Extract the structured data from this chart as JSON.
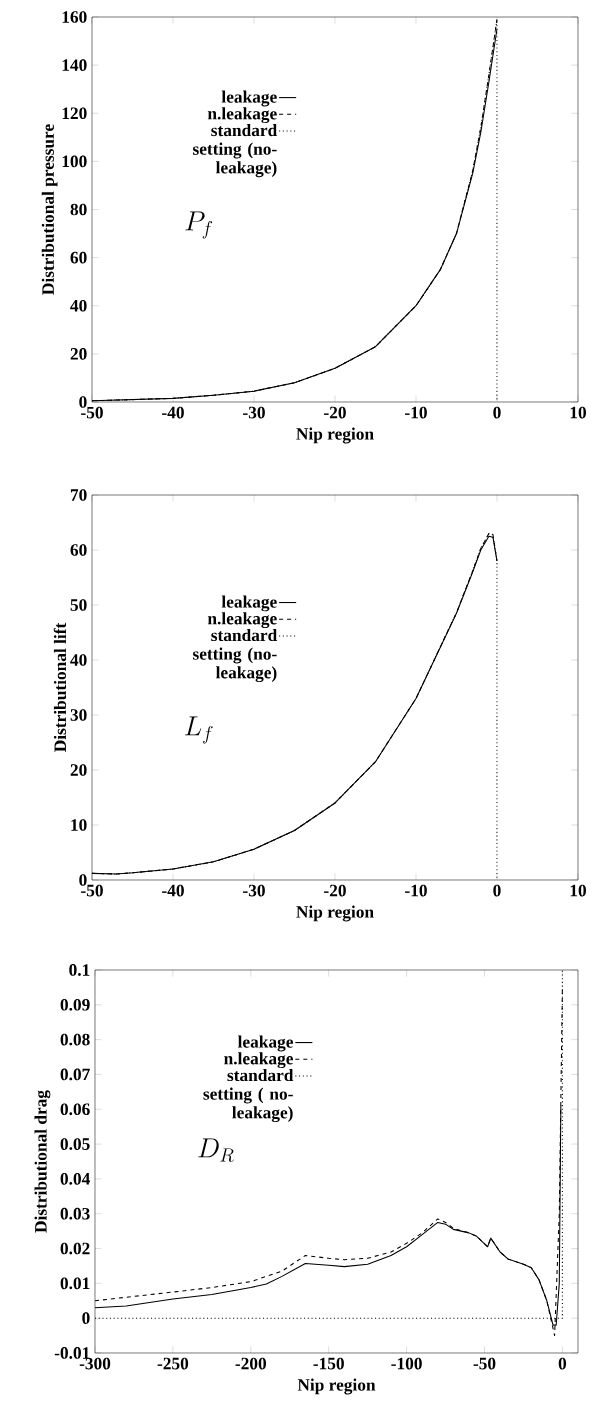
{
  "chart_data": [
    {
      "type": "line",
      "xlabel": "Nip region",
      "ylabel": "Distributional pressure",
      "xlim": [
        -50,
        10
      ],
      "ylim": [
        0,
        160
      ],
      "xticks": [
        -50,
        -40,
        -30,
        -20,
        -10,
        0,
        10
      ],
      "yticks": [
        0,
        20,
        40,
        60,
        80,
        100,
        120,
        140,
        160
      ],
      "legend": "top left",
      "annotations": [
        "P_f"
      ],
      "series": [
        {
          "name": "leakage",
          "color": "#000000",
          "line_style": "solid",
          "x": [
            -50,
            -45,
            -40,
            -35,
            -30,
            -25,
            -20,
            -15,
            -10,
            -7,
            -5,
            -3,
            -2,
            -1,
            0
          ],
          "values": [
            0.5,
            1,
            1.5,
            2.8,
            4.5,
            8,
            14,
            23,
            40,
            55,
            70,
            95,
            112,
            133,
            155
          ]
        },
        {
          "name": "n.leakage",
          "color": "#000000",
          "line_style": "dashed",
          "x": [
            -50,
            -45,
            -40,
            -35,
            -30,
            -25,
            -20,
            -15,
            -10,
            -7,
            -5,
            -3,
            -2,
            -1,
            0
          ],
          "values": [
            0.5,
            1,
            1.5,
            2.8,
            4.5,
            8,
            14,
            23,
            40,
            55,
            70,
            96,
            114,
            136,
            159
          ]
        },
        {
          "name": "standard setting (no-leakage)",
          "color": "#000000",
          "line_style": "dotted",
          "x": [
            -50,
            -45,
            -40,
            -35,
            -30,
            -25,
            -20,
            -15,
            -10,
            -7,
            -5,
            -3,
            -2,
            -1,
            0,
            0
          ],
          "values": [
            0.5,
            1,
            1.5,
            2.8,
            4.5,
            8,
            14,
            23,
            40,
            55,
            70,
            96,
            114,
            136,
            159,
            0
          ]
        }
      ]
    },
    {
      "type": "line",
      "xlabel": "Nip region",
      "ylabel": "Distributional lift",
      "xlim": [
        -50,
        10
      ],
      "ylim": [
        0,
        70
      ],
      "xticks": [
        -50,
        -40,
        -30,
        -20,
        -10,
        0,
        10
      ],
      "yticks": [
        0,
        10,
        20,
        30,
        40,
        50,
        60,
        70
      ],
      "legend": "top left",
      "annotations": [
        "L_f"
      ],
      "series": [
        {
          "name": "leakage",
          "color": "#000000",
          "line_style": "solid",
          "x": [
            -50,
            -47,
            -45,
            -40,
            -35,
            -30,
            -25,
            -20,
            -15,
            -10,
            -5,
            -3,
            -2,
            -1,
            -0.5,
            0
          ],
          "values": [
            1.2,
            1.1,
            1.3,
            2,
            3.3,
            5.6,
            9,
            14,
            21.5,
            33,
            48.5,
            56,
            60,
            62.5,
            62.3,
            58
          ]
        },
        {
          "name": "n.leakage",
          "color": "#000000",
          "line_style": "dashed",
          "x": [
            -50,
            -47,
            -45,
            -40,
            -35,
            -30,
            -25,
            -20,
            -15,
            -10,
            -5,
            -3,
            -2,
            -1,
            -0.5,
            0
          ],
          "values": [
            1.2,
            1.1,
            1.3,
            2,
            3.3,
            5.6,
            9,
            14,
            21.5,
            33,
            48.6,
            56.2,
            60.3,
            63,
            62.8,
            58
          ]
        },
        {
          "name": "standard setting (no-leakage)",
          "color": "#000000",
          "line_style": "dotted",
          "x": [
            -50,
            -47,
            -45,
            -40,
            -35,
            -30,
            -25,
            -20,
            -15,
            -10,
            -5,
            -3,
            -2,
            -1,
            -0.5,
            0,
            0
          ],
          "values": [
            1.2,
            1.1,
            1.3,
            2,
            3.3,
            5.6,
            9,
            14,
            21.5,
            33,
            48.6,
            56.2,
            60.3,
            63,
            62.8,
            58,
            0
          ]
        }
      ]
    },
    {
      "type": "line",
      "xlabel": "Nip region",
      "ylabel": "Distributional drag",
      "xlim": [
        -300,
        10
      ],
      "ylim": [
        -0.01,
        0.1
      ],
      "xticks": [
        -300,
        -250,
        -200,
        -150,
        -100,
        -50,
        0
      ],
      "yticks": [
        -0.01,
        0,
        0.01,
        0.02,
        0.03,
        0.04,
        0.05,
        0.06,
        0.07,
        0.08,
        0.09,
        0.1
      ],
      "legend": "top left",
      "annotations": [
        "D_R"
      ],
      "series": [
        {
          "name": "leakage",
          "color": "#000000",
          "line_style": "solid",
          "x": [
            -300,
            -280,
            -250,
            -225,
            -200,
            -190,
            -180,
            -165,
            -150,
            -140,
            -125,
            -110,
            -100,
            -90,
            -80,
            -75,
            -70,
            -60,
            -55,
            -48,
            -46,
            -40,
            -35,
            -25,
            -20,
            -15,
            -10,
            -6,
            -4,
            -2,
            -1
          ],
          "values": [
            0.003,
            0.0035,
            0.0055,
            0.0068,
            0.0088,
            0.0098,
            0.012,
            0.0157,
            0.0152,
            0.0148,
            0.0155,
            0.018,
            0.0205,
            0.024,
            0.0275,
            0.027,
            0.0255,
            0.0245,
            0.0235,
            0.0205,
            0.023,
            0.019,
            0.017,
            0.0155,
            0.0145,
            0.011,
            0.005,
            -0.002,
            -0.002,
            0.01,
            0.061
          ]
        },
        {
          "name": "n.leakage",
          "color": "#000000",
          "line_style": "dashed",
          "x": [
            -300,
            -250,
            -225,
            -200,
            -180,
            -165,
            -150,
            -140,
            -125,
            -110,
            -100,
            -90,
            -80,
            -75,
            -70,
            -60,
            -55,
            -48,
            -46,
            -40,
            -35,
            -25,
            -20,
            -15,
            -10,
            -5,
            -2,
            0
          ],
          "values": [
            0.005,
            0.0075,
            0.0088,
            0.0105,
            0.0135,
            0.018,
            0.0172,
            0.0168,
            0.0172,
            0.019,
            0.0215,
            0.0245,
            0.0285,
            0.0275,
            0.0258,
            0.0245,
            0.0235,
            0.0205,
            0.023,
            0.019,
            0.017,
            0.0155,
            0.0145,
            0.011,
            0.005,
            -0.005,
            0.03,
            0.095
          ]
        },
        {
          "name": "standard setting ( no-leakage)",
          "color": "#000000",
          "line_style": "dotted",
          "x": [
            -300,
            0,
            0
          ],
          "values": [
            0,
            0,
            0.1
          ]
        }
      ]
    }
  ]
}
